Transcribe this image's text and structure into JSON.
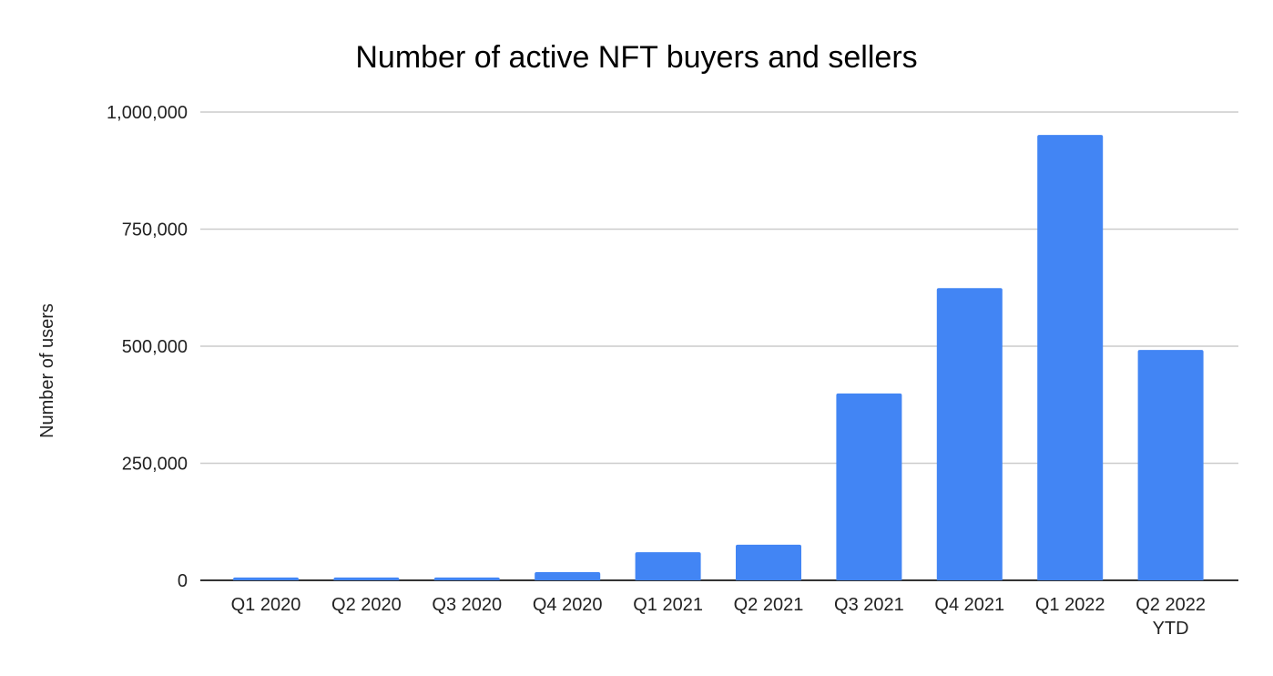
{
  "chart_data": {
    "type": "bar",
    "title": "Number of active NFT buyers and sellers",
    "xlabel": "",
    "ylabel": "Number of users",
    "categories": [
      "Q1 2020",
      "Q2 2020",
      "Q3 2020",
      "Q4 2020",
      "Q1 2021",
      "Q2 2021",
      "Q3 2021",
      "Q4 2021",
      "Q1 2022",
      "Q2 2022\nYTD"
    ],
    "values": [
      6000,
      6000,
      6000,
      17500,
      60000,
      76000,
      399000,
      624000,
      951000,
      492000
    ],
    "ylim": [
      0,
      1000000
    ],
    "yticks": [
      0,
      250000,
      500000,
      750000,
      1000000
    ],
    "ytick_labels": [
      "0",
      "250,000",
      "500,000",
      "750,000",
      "1,000,000"
    ],
    "grid": true,
    "legend": "none",
    "bar_color": "#4285f4",
    "grid_color": "#cccccc",
    "axis_color": "#333333"
  }
}
